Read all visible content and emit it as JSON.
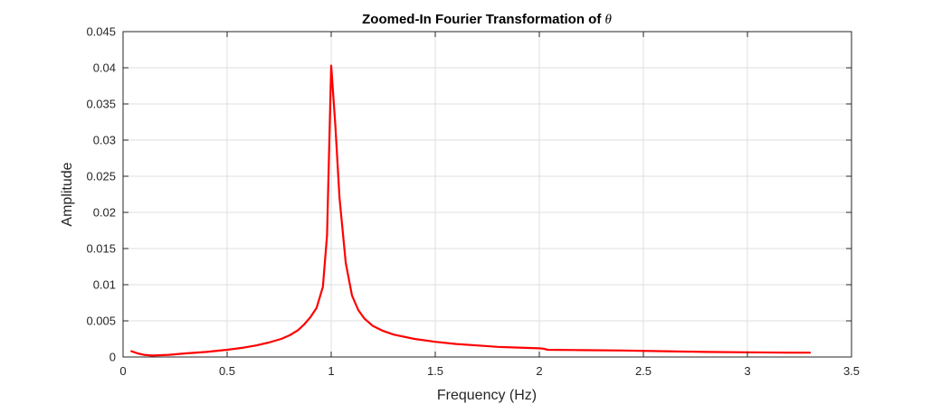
{
  "chart_data": {
    "type": "line",
    "title": "Zoomed-In Fourier Transformation of ",
    "title_symbol": "θ",
    "xlabel": "Frequency (Hz)",
    "ylabel": "Amplitude",
    "xlim": [
      0,
      3.5
    ],
    "ylim": [
      0,
      0.045
    ],
    "xticks": [
      0,
      0.5,
      1,
      1.5,
      2,
      2.5,
      3,
      3.5
    ],
    "xtick_labels": [
      "0",
      "0.5",
      "1",
      "1.5",
      "2",
      "2.5",
      "3",
      "3.5"
    ],
    "yticks": [
      0,
      0.005,
      0.01,
      0.015,
      0.02,
      0.025,
      0.03,
      0.035,
      0.04,
      0.045
    ],
    "ytick_labels": [
      "0",
      "0.005",
      "0.01",
      "0.015",
      "0.02",
      "0.025",
      "0.03",
      "0.035",
      "0.04",
      "0.045"
    ],
    "grid": true,
    "series": [
      {
        "color": "#ff0000",
        "x": [
          0.04,
          0.07,
          0.1,
          0.14,
          0.18,
          0.22,
          0.3,
          0.4,
          0.5,
          0.58,
          0.64,
          0.7,
          0.76,
          0.8,
          0.84,
          0.87,
          0.9,
          0.93,
          0.96,
          0.98,
          1.0,
          1.02,
          1.04,
          1.07,
          1.1,
          1.13,
          1.16,
          1.2,
          1.25,
          1.3,
          1.4,
          1.5,
          1.6,
          1.7,
          1.8,
          1.9,
          2.0,
          2.02,
          2.04,
          2.2,
          2.4,
          2.6,
          2.8,
          3.0,
          3.2,
          3.3
        ],
        "y": [
          0.0008,
          0.0005,
          0.0003,
          0.0002,
          0.00025,
          0.0003,
          0.0005,
          0.0007,
          0.001,
          0.0013,
          0.0016,
          0.002,
          0.0025,
          0.003,
          0.0037,
          0.0045,
          0.0055,
          0.0068,
          0.0097,
          0.0168,
          0.0403,
          0.032,
          0.022,
          0.013,
          0.0085,
          0.0065,
          0.0053,
          0.0043,
          0.0036,
          0.0031,
          0.0025,
          0.0021,
          0.0018,
          0.0016,
          0.0014,
          0.0013,
          0.0012,
          0.00115,
          0.001,
          0.00095,
          0.0009,
          0.0008,
          0.0007,
          0.00065,
          0.0006,
          0.0006
        ]
      }
    ]
  }
}
